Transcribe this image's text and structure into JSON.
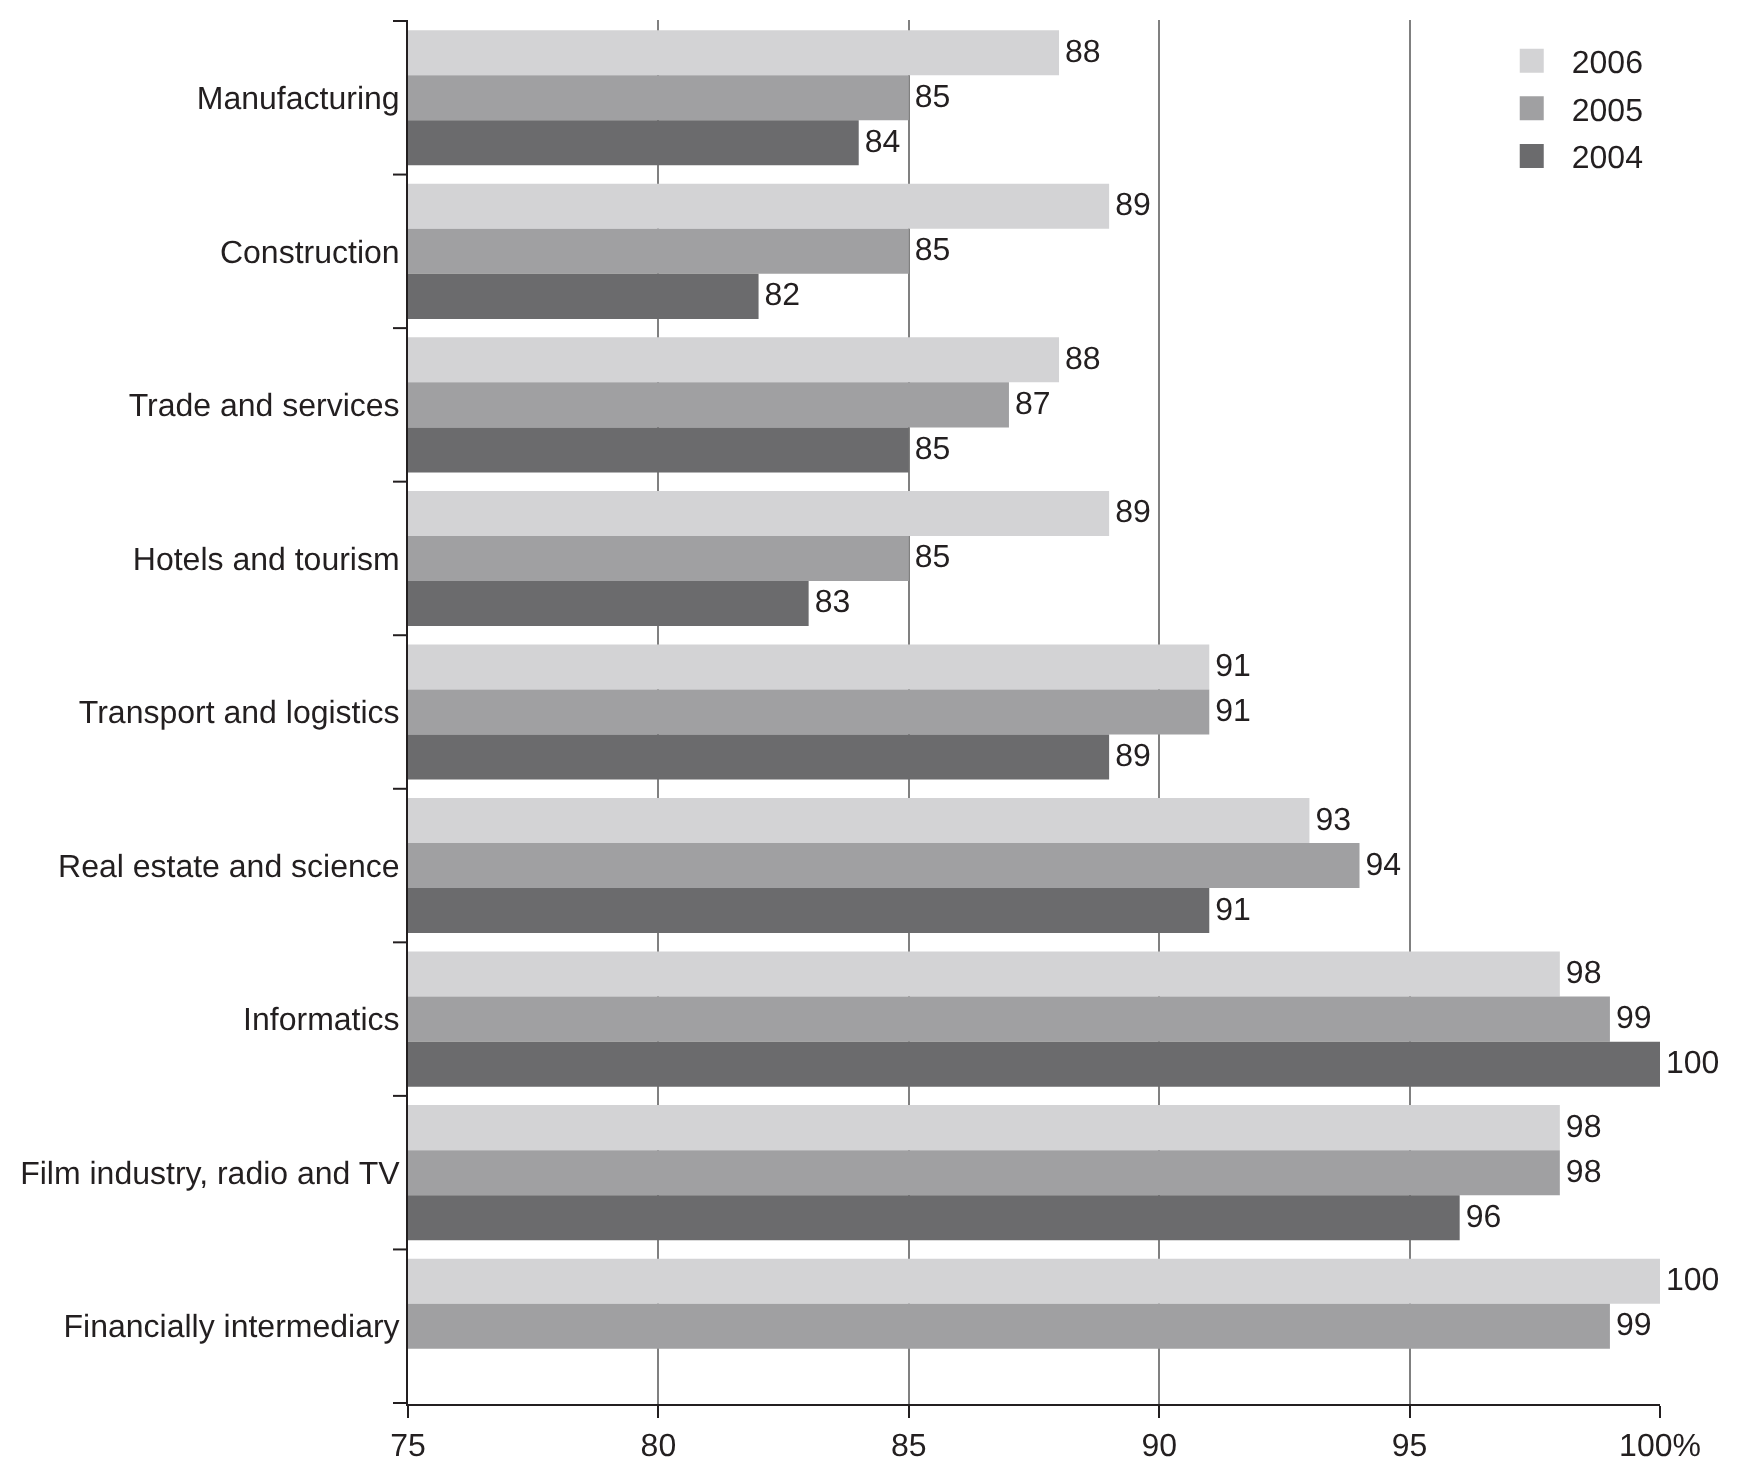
{
  "chart_data": {
    "type": "bar",
    "orientation": "horizontal",
    "categories": [
      "Manufacturing",
      "Construction",
      "Trade and services",
      "Hotels and tourism",
      "Transport and logistics",
      "Real estate and science",
      "Informatics",
      "Film industry, radio and TV",
      "Financially intermediary"
    ],
    "series": [
      {
        "name": "2006",
        "color": "#d3d3d5",
        "values": [
          88,
          89,
          88,
          89,
          91,
          93,
          98,
          98,
          100
        ]
      },
      {
        "name": "2005",
        "color": "#a0a0a2",
        "values": [
          85,
          85,
          87,
          85,
          91,
          94,
          99,
          98,
          99
        ]
      },
      {
        "name": "2004",
        "color": "#6b6b6d",
        "values": [
          84,
          82,
          85,
          83,
          89,
          91,
          100,
          96,
          null
        ]
      }
    ],
    "xlim": [
      75,
      100
    ],
    "xticks": [
      75,
      80,
      85,
      90,
      95,
      {
        "value": 100,
        "label": "100%"
      }
    ],
    "grid": "x",
    "legend": "top right",
    "data_labels": true
  }
}
